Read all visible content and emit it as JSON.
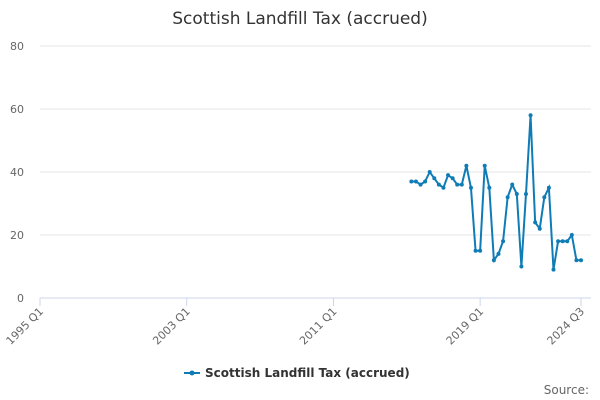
{
  "chart_data": {
    "type": "line",
    "title": "Scottish Landfill Tax (accrued)",
    "categories": [
      "1995 Q1",
      null,
      null,
      null,
      null,
      null,
      null,
      null,
      null,
      null,
      null,
      null,
      null,
      null,
      null,
      null,
      null,
      null,
      null,
      null,
      null,
      null,
      null,
      null,
      null,
      null,
      null,
      null,
      null,
      null,
      null,
      null,
      "2003 Q1",
      null,
      null,
      null,
      null,
      null,
      null,
      null,
      null,
      null,
      null,
      null,
      null,
      null,
      null,
      null,
      null,
      null,
      null,
      null,
      null,
      null,
      null,
      null,
      null,
      null,
      null,
      null,
      null,
      null,
      null,
      null,
      "2011 Q1",
      null,
      null,
      null,
      null,
      null,
      null,
      null,
      null,
      null,
      null,
      null,
      null,
      null,
      null,
      null,
      null,
      null,
      null,
      null,
      null,
      null,
      null,
      null,
      null,
      null,
      null,
      null,
      null,
      null,
      null,
      null,
      "2019 Q1",
      null,
      null,
      null,
      null,
      null,
      null,
      null,
      null,
      null,
      null,
      null,
      null,
      null,
      null,
      null,
      null,
      null,
      null,
      null,
      null,
      null,
      "2024 Q3"
    ],
    "series": [
      {
        "name": "Scottish Landfill Tax (accrued)",
        "color": "#0f7cb6",
        "values": [
          null,
          null,
          null,
          null,
          null,
          null,
          null,
          null,
          null,
          null,
          null,
          null,
          null,
          null,
          null,
          null,
          null,
          null,
          null,
          null,
          null,
          null,
          null,
          null,
          null,
          null,
          null,
          null,
          null,
          null,
          null,
          null,
          null,
          null,
          null,
          null,
          null,
          null,
          null,
          null,
          null,
          null,
          null,
          null,
          null,
          null,
          null,
          null,
          null,
          null,
          null,
          null,
          null,
          null,
          null,
          null,
          null,
          null,
          null,
          null,
          null,
          null,
          null,
          null,
          null,
          null,
          null,
          null,
          null,
          null,
          null,
          null,
          null,
          null,
          null,
          null,
          null,
          null,
          null,
          null,
          null,
          37,
          37,
          36,
          37,
          40,
          38,
          36,
          35,
          39,
          38,
          36,
          36,
          42,
          35,
          15,
          15,
          42,
          35,
          12,
          14,
          18,
          32,
          36,
          33,
          10,
          33,
          58,
          24,
          22,
          32,
          35,
          9,
          18,
          18,
          18,
          20,
          12,
          12
        ]
      }
    ],
    "ylim": [
      0,
      80
    ],
    "yticks": [
      0,
      20,
      40,
      60,
      80
    ],
    "grid": true,
    "legend": "bottom",
    "source": "Source:"
  }
}
